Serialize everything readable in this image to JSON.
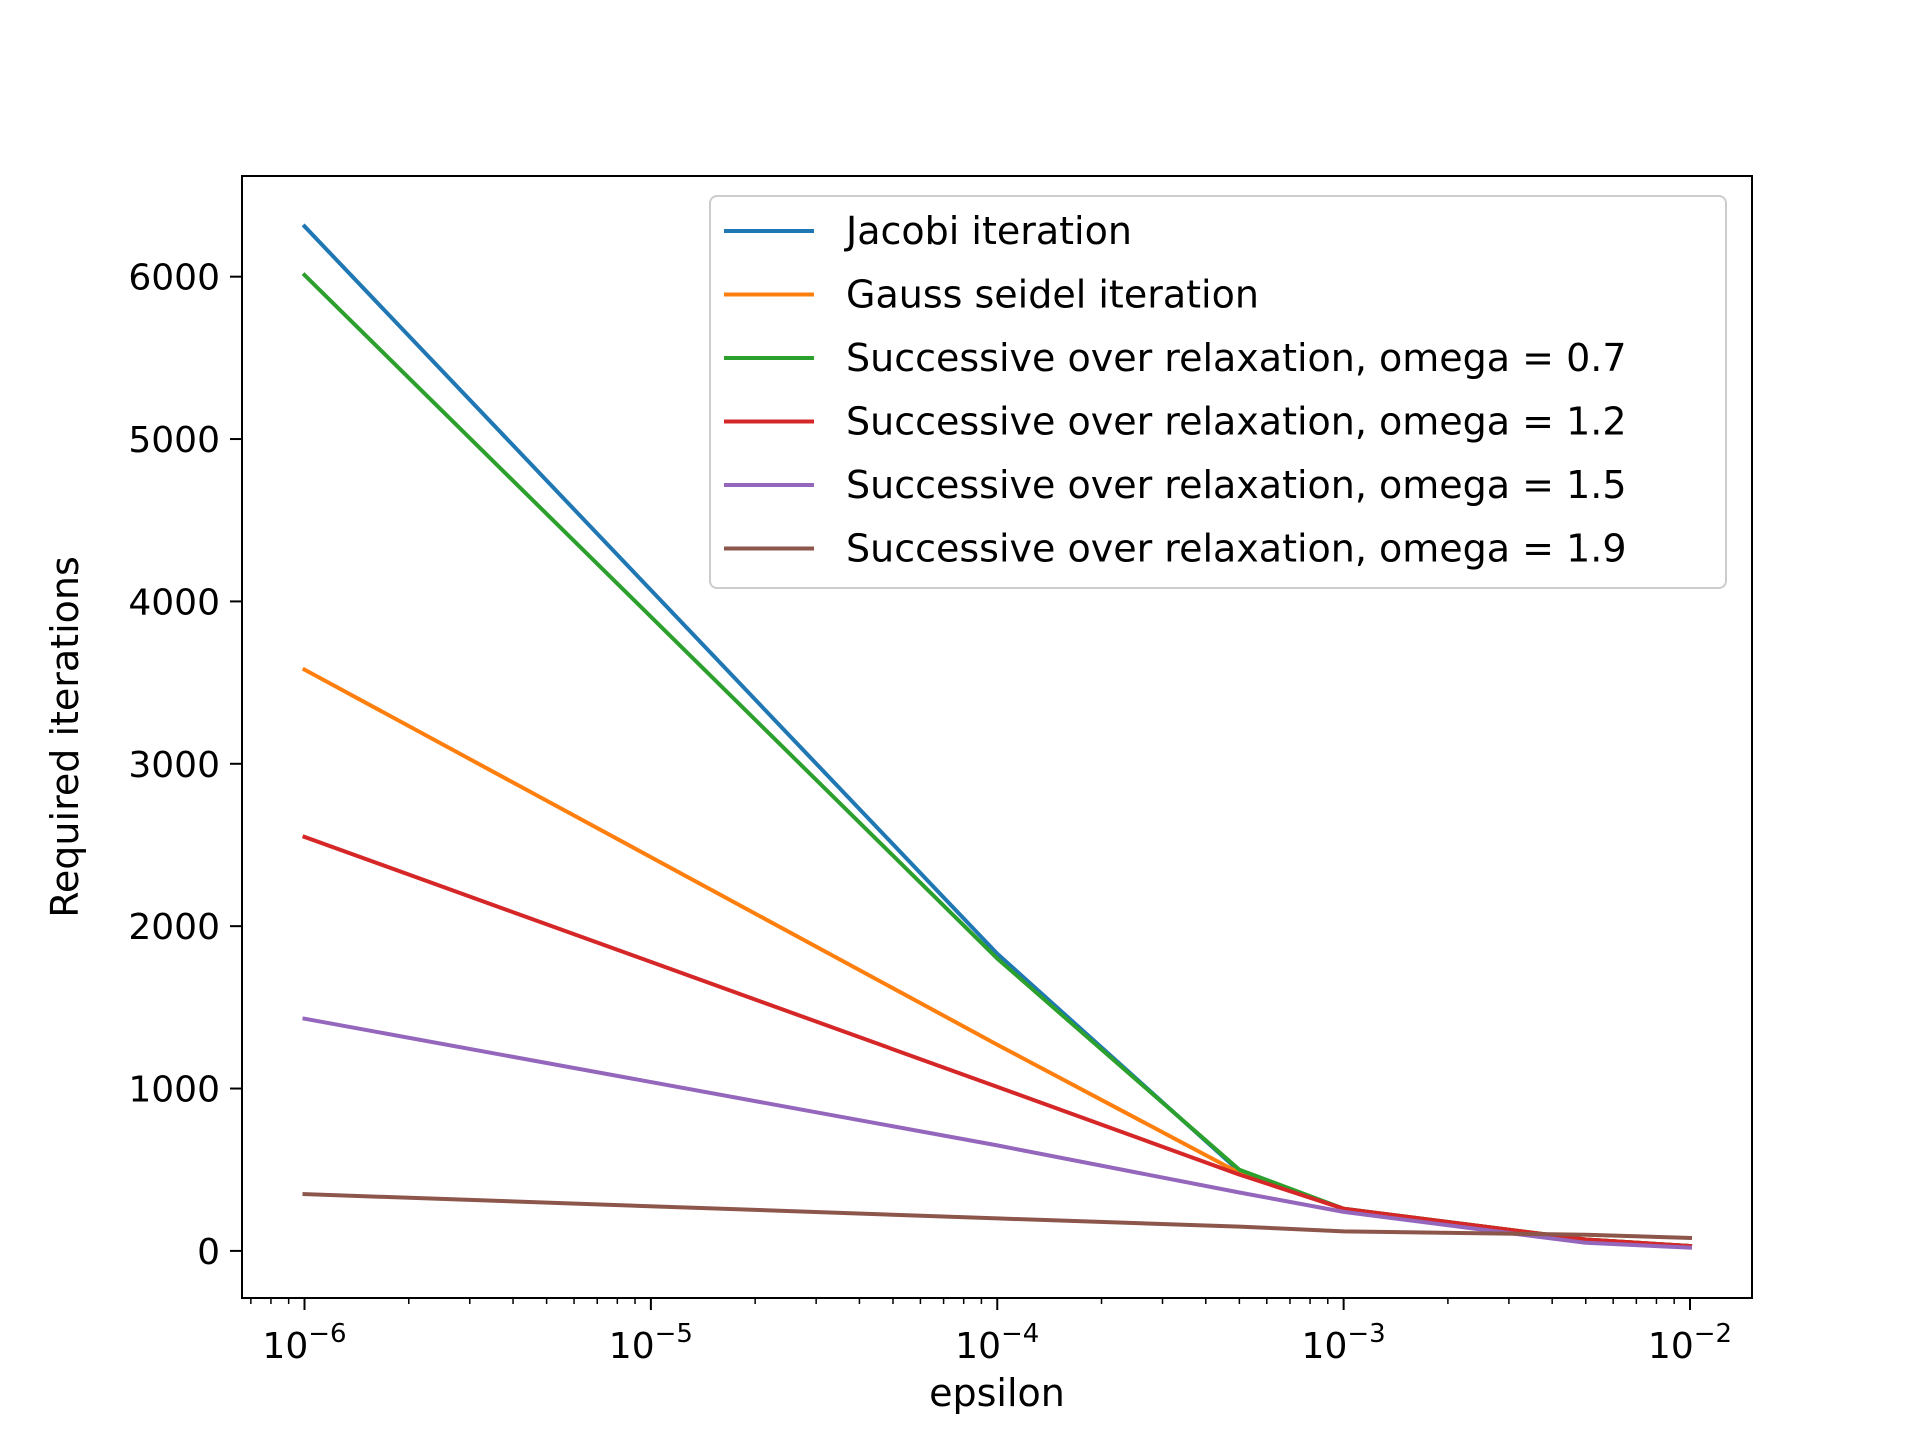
{
  "chart_data": {
    "type": "line",
    "xlabel": "epsilon",
    "ylabel": "Required iterations",
    "xscale": "log",
    "xlim": [
      6.6e-07,
      0.0151
    ],
    "ylim": [
      -290,
      6620
    ],
    "x_ticks": [
      {
        "value": 1e-06,
        "base": "10",
        "exp": "−6"
      },
      {
        "value": 1e-05,
        "base": "10",
        "exp": "−5"
      },
      {
        "value": 0.0001,
        "base": "10",
        "exp": "−4"
      },
      {
        "value": 0.001,
        "base": "10",
        "exp": "−3"
      },
      {
        "value": 0.01,
        "base": "10",
        "exp": "−2"
      }
    ],
    "y_ticks": [
      "0",
      "1000",
      "2000",
      "3000",
      "4000",
      "5000",
      "6000"
    ],
    "grid": false,
    "legend_position": "upper right",
    "series": [
      {
        "name": "Jacobi iteration",
        "color": "#1f77b4",
        "x": [
          1e-06,
          0.0001,
          0.0005,
          0.001,
          0.005,
          0.01
        ],
        "y": [
          6310,
          1830,
          490,
          260,
          70,
          30
        ]
      },
      {
        "name": "Gauss seidel iteration",
        "color": "#ff7f0e",
        "x": [
          1e-06,
          0.0001,
          0.0005,
          0.001,
          0.005,
          0.01
        ],
        "y": [
          3580,
          1270,
          480,
          260,
          70,
          30
        ]
      },
      {
        "name": "Successive over relaxation, omega = 0.7",
        "color": "#2ca02c",
        "x": [
          1e-06,
          0.0001,
          0.0005,
          0.001,
          0.005,
          0.01
        ],
        "y": [
          6010,
          1800,
          500,
          260,
          70,
          30
        ]
      },
      {
        "name": "Successive over relaxation, omega = 1.2",
        "color": "#d62728",
        "x": [
          1e-06,
          0.0001,
          0.0005,
          0.001,
          0.005,
          0.01
        ],
        "y": [
          2550,
          1010,
          470,
          260,
          70,
          30
        ]
      },
      {
        "name": "Successive over relaxation, omega = 1.5",
        "color": "#9467bd",
        "x": [
          1e-06,
          0.0001,
          0.0005,
          0.001,
          0.005,
          0.01
        ],
        "y": [
          1430,
          650,
          360,
          240,
          50,
          20
        ]
      },
      {
        "name": "Successive over relaxation, omega = 1.9",
        "color": "#8c564b",
        "x": [
          1e-06,
          0.0001,
          0.0005,
          0.001,
          0.005,
          0.01
        ],
        "y": [
          350,
          200,
          150,
          120,
          100,
          80
        ]
      }
    ]
  }
}
